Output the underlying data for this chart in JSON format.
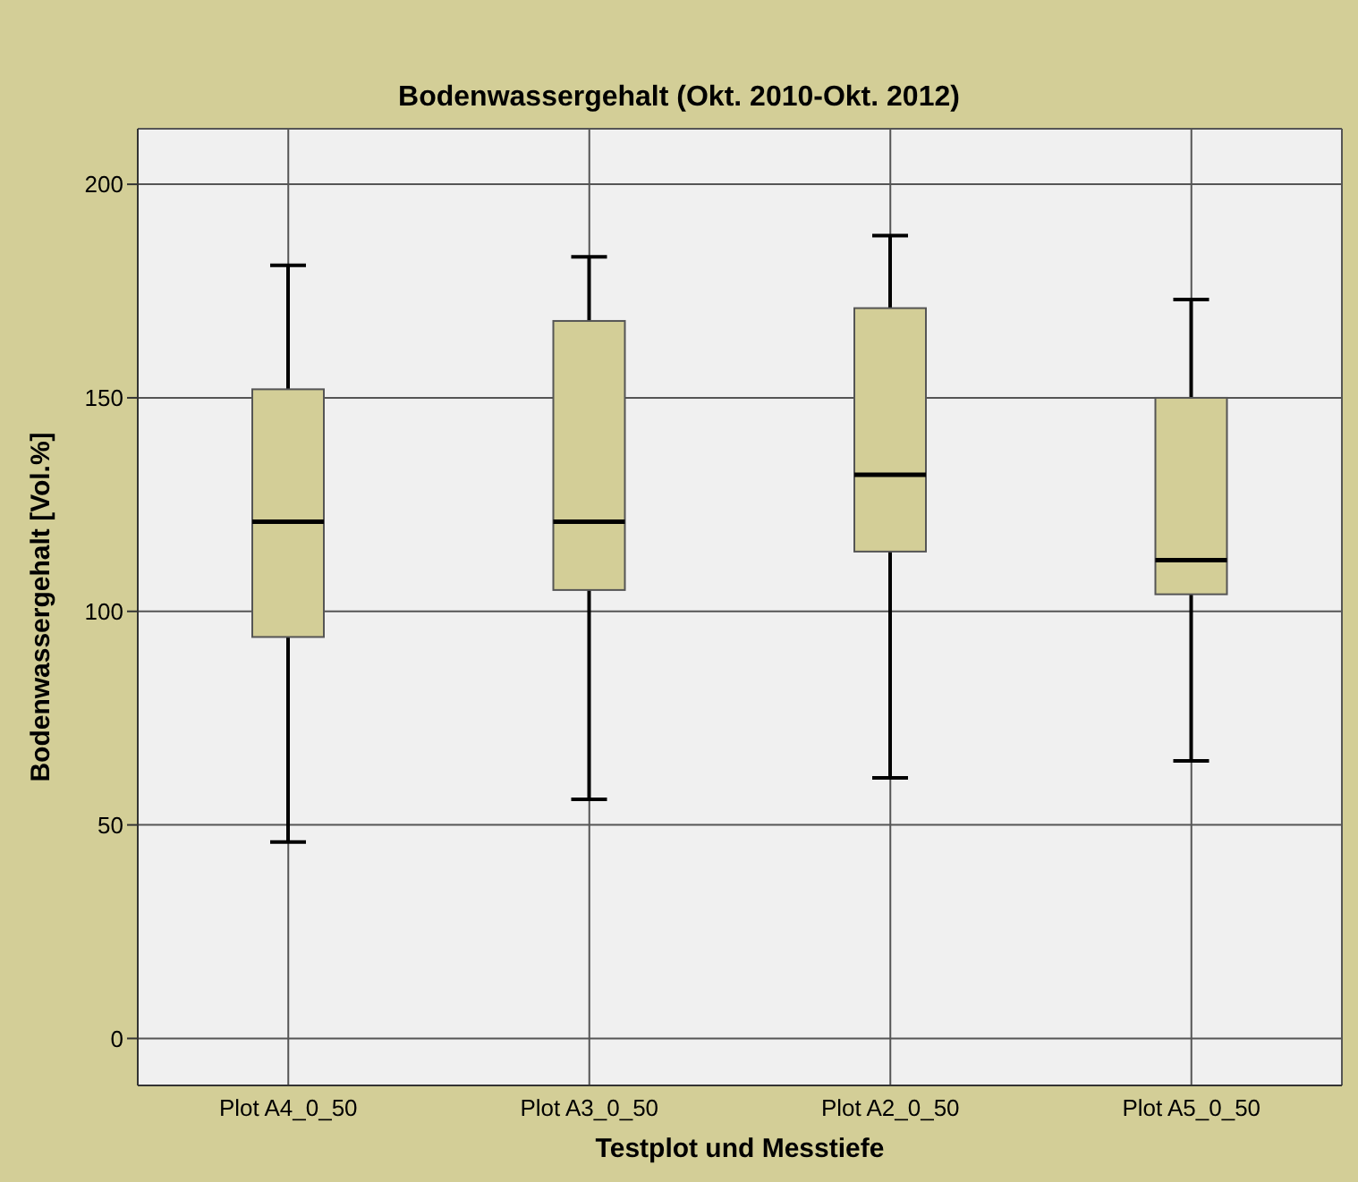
{
  "chart_data": {
    "type": "box",
    "title": "Bodenwassergehalt (Okt. 2010-Okt. 2012)",
    "xlabel": "Testplot und Messtiefe",
    "ylabel": "Bodenwassergehalt [Vol.%]",
    "categories": [
      "Plot A4_0_50",
      "Plot A3_0_50",
      "Plot A2_0_50",
      "Plot A5_0_50"
    ],
    "boxes": [
      {
        "low": 46,
        "q1": 94,
        "median": 121,
        "q3": 152,
        "high": 181
      },
      {
        "low": 56,
        "q1": 105,
        "median": 121,
        "q3": 168,
        "high": 183
      },
      {
        "low": 61,
        "q1": 114,
        "median": 132,
        "q3": 171,
        "high": 188
      },
      {
        "low": 65,
        "q1": 104,
        "median": 112,
        "q3": 150,
        "high": 173
      }
    ],
    "color": "#d3ce97",
    "ylim": [
      -11,
      213
    ],
    "yticks": [
      0,
      50,
      100,
      150,
      200
    ],
    "grid": true
  }
}
